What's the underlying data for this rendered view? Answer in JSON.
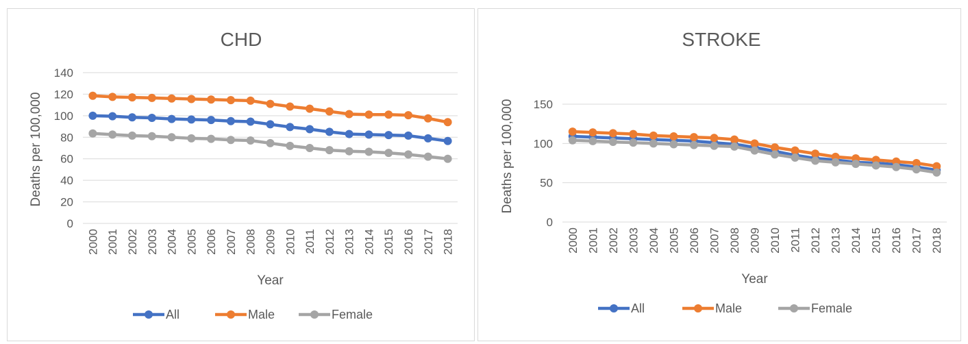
{
  "chart_data": [
    {
      "type": "line",
      "title": "CHD",
      "xlabel": "Year",
      "ylabel": "Deaths per 100,000",
      "ylim": [
        0,
        140
      ],
      "yticks": [
        0,
        20,
        40,
        60,
        80,
        100,
        120,
        140
      ],
      "grid": true,
      "legend": "bottom",
      "categories": [
        "2000",
        "2001",
        "2002",
        "2003",
        "2004",
        "2005",
        "2006",
        "2007",
        "2008",
        "2009",
        "2010",
        "2011",
        "2012",
        "2013",
        "2014",
        "2015",
        "2016",
        "2017",
        "2018"
      ],
      "series": [
        {
          "name": "All",
          "color": "#4472C4",
          "values": [
            100,
            99.5,
            98.5,
            98,
            97,
            96.5,
            96,
            95,
            94.5,
            92,
            89.5,
            87.5,
            85,
            83,
            82.5,
            82,
            81.5,
            79,
            76.5
          ]
        },
        {
          "name": "Male",
          "color": "#ED7D31",
          "values": [
            118.5,
            117.5,
            117,
            116.5,
            116,
            115.5,
            115,
            114.5,
            114,
            111,
            108.5,
            106.5,
            104,
            101.5,
            101,
            101,
            100.5,
            97.5,
            94
          ]
        },
        {
          "name": "Female",
          "color": "#A5A5A5",
          "values": [
            83.5,
            82.5,
            81.5,
            81,
            80,
            79,
            78.5,
            77.5,
            77,
            74.5,
            72,
            70,
            68,
            67,
            66.5,
            65.5,
            64,
            62,
            60
          ]
        }
      ]
    },
    {
      "type": "line",
      "title": "STROKE",
      "xlabel": "Year",
      "ylabel": "Deaths per 100,000",
      "ylim": [
        0,
        150
      ],
      "yticks": [
        0,
        50,
        100,
        150
      ],
      "grid": true,
      "legend": "bottom",
      "categories": [
        "2000",
        "2001",
        "2002",
        "2003",
        "2004",
        "2005",
        "2006",
        "2007",
        "2008",
        "2009",
        "2010",
        "2011",
        "2012",
        "2013",
        "2014",
        "2015",
        "2016",
        "2017",
        "2018"
      ],
      "series": [
        {
          "name": "All",
          "color": "#4472C4",
          "values": [
            109,
            108,
            107,
            106,
            105,
            104,
            103,
            101,
            99,
            95,
            90,
            85,
            81,
            79,
            76,
            75,
            73,
            70,
            66
          ]
        },
        {
          "name": "Male",
          "color": "#ED7D31",
          "values": [
            115,
            114,
            113,
            112,
            110,
            109,
            108,
            107,
            105,
            100,
            95,
            91,
            87,
            83,
            81,
            79,
            77,
            75,
            71
          ]
        },
        {
          "name": "Female",
          "color": "#A5A5A5",
          "values": [
            104,
            103,
            102,
            101,
            100,
            99,
            98,
            97,
            96,
            91,
            86,
            82,
            78,
            76,
            74,
            72,
            70,
            67,
            63
          ]
        }
      ]
    }
  ]
}
